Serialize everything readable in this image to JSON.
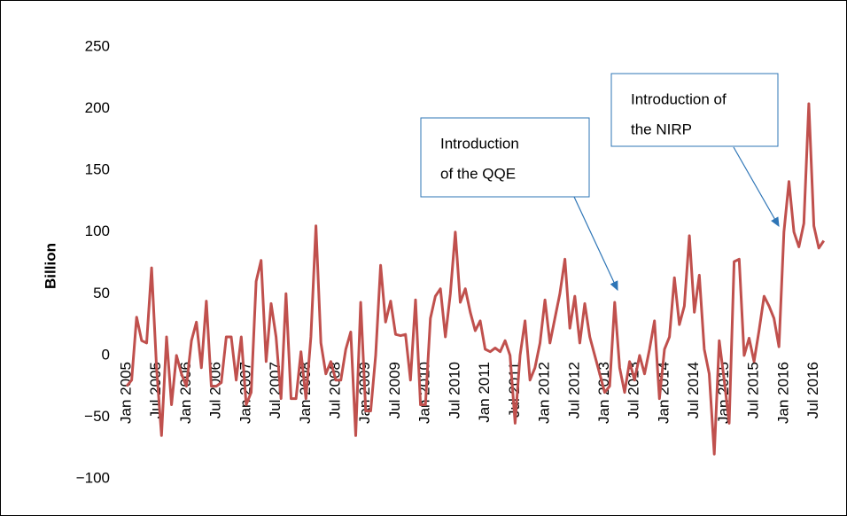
{
  "chart_data": {
    "type": "line",
    "y_label": "Billion",
    "color": "#c0504d",
    "categories": [
      "Jan 2005",
      null,
      null,
      null,
      null,
      null,
      "Jul 2005",
      null,
      null,
      null,
      null,
      null,
      "Jan 2006",
      null,
      null,
      null,
      null,
      null,
      "Jul 2006",
      null,
      null,
      null,
      null,
      null,
      "Jan 2007",
      null,
      null,
      null,
      null,
      null,
      "Jul 2007",
      null,
      null,
      null,
      null,
      null,
      "Jan 2008",
      null,
      null,
      null,
      null,
      null,
      "Jul 2008",
      null,
      null,
      null,
      null,
      null,
      "Jan 2009",
      null,
      null,
      null,
      null,
      null,
      "Jul 2009",
      null,
      null,
      null,
      null,
      null,
      "Jan 2010",
      null,
      null,
      null,
      null,
      null,
      "Jul 2010",
      null,
      null,
      null,
      null,
      null,
      "Jan 2011",
      null,
      null,
      null,
      null,
      null,
      "Jul 2011",
      null,
      null,
      null,
      null,
      null,
      "Jan 2012",
      null,
      null,
      null,
      null,
      null,
      "Jul 2012",
      null,
      null,
      null,
      null,
      null,
      "Jan 2013",
      null,
      null,
      null,
      null,
      null,
      "Jul 2013",
      null,
      null,
      null,
      null,
      null,
      "Jan 2014",
      null,
      null,
      null,
      null,
      null,
      "Jul 2014",
      null,
      null,
      null,
      null,
      null,
      "Jan 2015",
      null,
      null,
      null,
      null,
      null,
      "Jul 2015",
      null,
      null,
      null,
      null,
      null,
      "Jan 2016",
      null,
      null,
      null,
      null,
      null,
      "Jul 2016",
      null,
      null
    ],
    "values": [
      -25,
      -20,
      31,
      12,
      10,
      71,
      -10,
      -65,
      15,
      -40,
      0,
      -15,
      -25,
      12,
      27,
      -10,
      44,
      -25,
      -25,
      -22,
      15,
      15,
      -20,
      15,
      -40,
      -30,
      60,
      77,
      -5,
      42,
      15,
      -35,
      50,
      -35,
      -35,
      3,
      -35,
      15,
      105,
      10,
      -15,
      -5,
      -20,
      -20,
      5,
      19,
      -65,
      43,
      -45,
      -45,
      0,
      73,
      27,
      44,
      17,
      16,
      17,
      -20,
      45,
      -40,
      -40,
      30,
      48,
      54,
      15,
      50,
      100,
      43,
      54,
      35,
      20,
      28,
      5,
      3,
      6,
      3,
      12,
      0,
      -55,
      0,
      28,
      -20,
      -10,
      10,
      45,
      10,
      30,
      50,
      78,
      22,
      48,
      10,
      42,
      15,
      0,
      -15,
      -30,
      -25,
      43,
      -10,
      -30,
      -5,
      -20,
      0,
      -15,
      5,
      28,
      -35,
      5,
      15,
      63,
      25,
      40,
      97,
      35,
      65,
      5,
      -15,
      -80,
      12,
      -20,
      -55,
      76,
      78,
      0,
      14,
      -5,
      20,
      48,
      40,
      30,
      7,
      100,
      141,
      100,
      88,
      107,
      204,
      105,
      87,
      93
    ],
    "ylim": [
      -100,
      250
    ],
    "yticks": [
      {
        "value": -100,
        "label": "−100"
      },
      {
        "value": -50,
        "label": "−50"
      },
      0,
      50,
      100,
      150,
      200,
      250
    ],
    "annotations": [
      {
        "lines": [
          "Introduction",
          "of the QQE"
        ]
      },
      {
        "lines": [
          "Introduction of",
          "the NIRP"
        ]
      }
    ]
  }
}
